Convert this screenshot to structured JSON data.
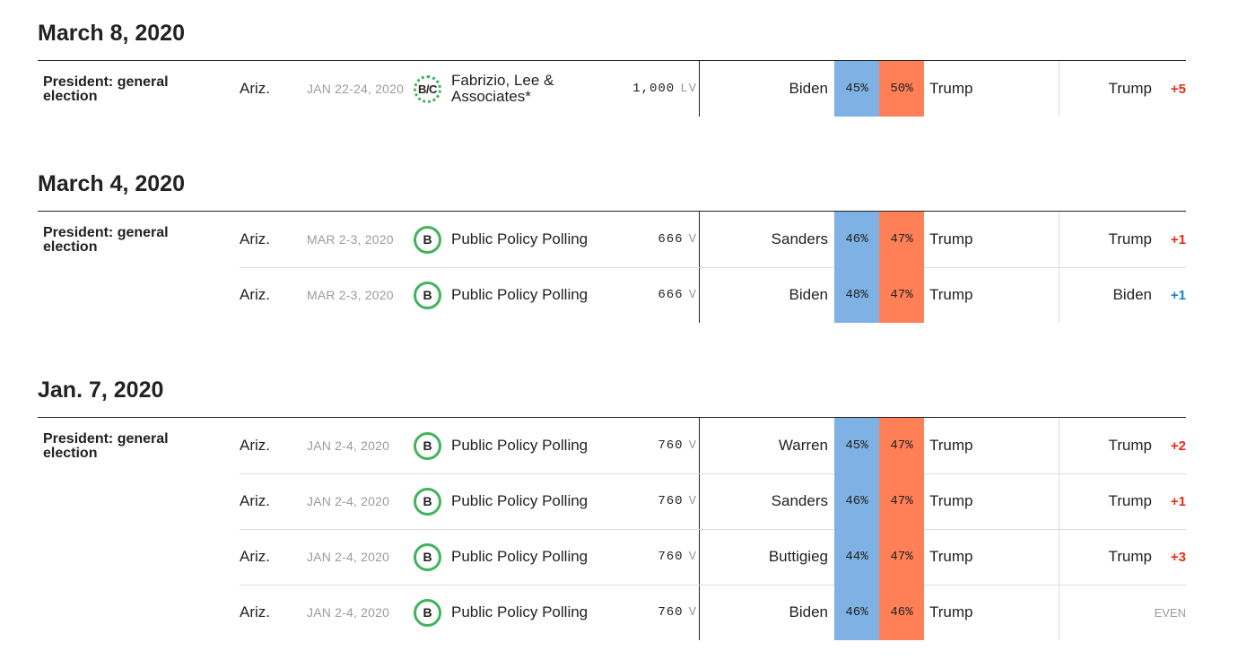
{
  "colors": {
    "dem": "#7fb2e4",
    "rep": "#ff8056",
    "rep_text": "#ee2a14",
    "dem_text": "#0c88c9",
    "grade_ring": "#41b35d"
  },
  "groups": [
    {
      "date": "March 8, 2020",
      "office": "President: general election",
      "rows": [
        {
          "state": "Ariz.",
          "dates": "JAN 22-24, 2020",
          "grade": "B/C",
          "pollster": "Fabrizio, Lee & Associates*",
          "sample": "1,000",
          "pop": "LV",
          "cand1": "Biden",
          "pct1": "45%",
          "pct2": "50%",
          "cand2": "Trump",
          "leader": "Trump",
          "net": "+5",
          "net_party": "rep"
        }
      ]
    },
    {
      "date": "March 4, 2020",
      "office": "President: general election",
      "rows": [
        {
          "state": "Ariz.",
          "dates": "MAR 2-3, 2020",
          "grade": "B",
          "pollster": "Public Policy Polling",
          "sample": "666",
          "pop": "V",
          "cand1": "Sanders",
          "pct1": "46%",
          "pct2": "47%",
          "cand2": "Trump",
          "leader": "Trump",
          "net": "+1",
          "net_party": "rep"
        },
        {
          "state": "Ariz.",
          "dates": "MAR 2-3, 2020",
          "grade": "B",
          "pollster": "Public Policy Polling",
          "sample": "666",
          "pop": "V",
          "cand1": "Biden",
          "pct1": "48%",
          "pct2": "47%",
          "cand2": "Trump",
          "leader": "Biden",
          "net": "+1",
          "net_party": "dem"
        }
      ]
    },
    {
      "date": "Jan. 7, 2020",
      "office": "President: general election",
      "rows": [
        {
          "state": "Ariz.",
          "dates": "JAN 2-4, 2020",
          "grade": "B",
          "pollster": "Public Policy Polling",
          "sample": "760",
          "pop": "V",
          "cand1": "Warren",
          "pct1": "45%",
          "pct2": "47%",
          "cand2": "Trump",
          "leader": "Trump",
          "net": "+2",
          "net_party": "rep"
        },
        {
          "state": "Ariz.",
          "dates": "JAN 2-4, 2020",
          "grade": "B",
          "pollster": "Public Policy Polling",
          "sample": "760",
          "pop": "V",
          "cand1": "Sanders",
          "pct1": "46%",
          "pct2": "47%",
          "cand2": "Trump",
          "leader": "Trump",
          "net": "+1",
          "net_party": "rep"
        },
        {
          "state": "Ariz.",
          "dates": "JAN 2-4, 2020",
          "grade": "B",
          "pollster": "Public Policy Polling",
          "sample": "760",
          "pop": "V",
          "cand1": "Buttigieg",
          "pct1": "44%",
          "pct2": "47%",
          "cand2": "Trump",
          "leader": "Trump",
          "net": "+3",
          "net_party": "rep"
        },
        {
          "state": "Ariz.",
          "dates": "JAN 2-4, 2020",
          "grade": "B",
          "pollster": "Public Policy Polling",
          "sample": "760",
          "pop": "V",
          "cand1": "Biden",
          "pct1": "46%",
          "pct2": "46%",
          "cand2": "Trump",
          "leader": "",
          "net": "EVEN",
          "net_party": "even"
        }
      ]
    }
  ]
}
